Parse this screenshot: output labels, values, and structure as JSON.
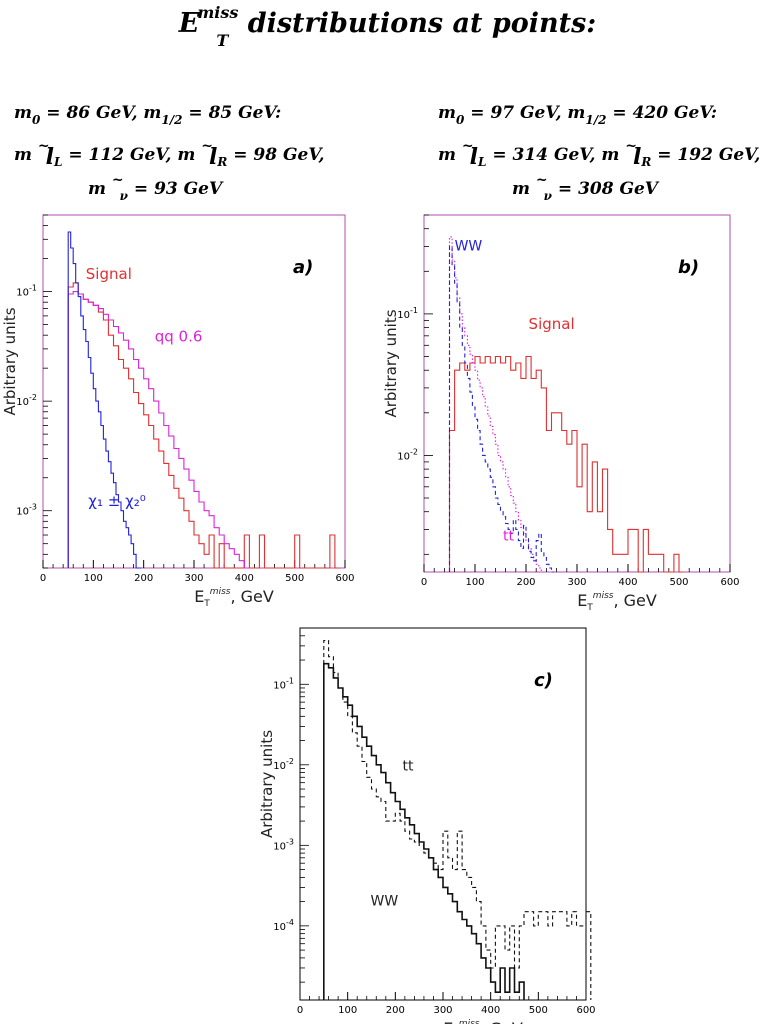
{
  "title": {
    "e": "E",
    "sup": "miss",
    "sub": "T",
    "rest": "distributions at points:"
  },
  "point_a": {
    "line1_a": "m",
    "line1_a_sub": "0",
    "line1_b": "= 86  GeV,   m",
    "line1_b_sub": "1/2",
    "line1_c": "= 85 GeV:",
    "line2_a": "m",
    "line2_a_sub": "L",
    "line2_b": "= 112 GeV,  m",
    "line2_b_sub": "R",
    "line2_c": "= 98 GeV,",
    "line3_a": "m",
    "line3_sub": "ν",
    "line3_b": "= 93 GeV"
  },
  "point_b": {
    "line1_a": "m",
    "line1_a_sub": "0",
    "line1_b": "= 97  GeV,   m",
    "line1_b_sub": "1/2",
    "line1_c": "= 420 GeV:",
    "line2_a": "m",
    "line2_a_sub": "L",
    "line2_b": "= 314 GeV,  m",
    "line2_b_sub": "R",
    "line2_c": "= 192 GeV,",
    "line3_a": "m",
    "line3_sub": "ν",
    "line3_b": "= 308 GeV"
  },
  "tilde": "~",
  "ell": "l",
  "chart_data": [
    {
      "type": "line",
      "panel_label": "a)",
      "ylabel": "Arbitrary units",
      "xlabel_main": "E",
      "xlabel_sub": "T",
      "xlabel_sup": "miss",
      "xlabel_unit": ", GeV",
      "scale_y": "log",
      "xlim": [
        0,
        600
      ],
      "ylim": [
        0.0003,
        0.5
      ],
      "x_ticks": [
        0,
        100,
        200,
        300,
        400,
        500,
        600
      ],
      "y_ticks": [
        {
          "value": 0.1,
          "base": "10",
          "exp": "-1"
        },
        {
          "value": 0.01,
          "base": "10",
          "exp": "-2"
        },
        {
          "value": 0.001,
          "base": "10",
          "exp": "-3"
        }
      ],
      "annotations": [
        {
          "text": "Signal",
          "color": "#e03030",
          "x": 85,
          "y": 0.13
        },
        {
          "text": "qq 0.6",
          "color": "#dd22dd",
          "x": 222,
          "y": 0.035
        },
        {
          "text": "χ₁ ± χ₂⁰",
          "color": "#2222dd",
          "x": 90,
          "y": 0.0011
        }
      ],
      "series": [
        {
          "color": "#e03030",
          "style": "solid",
          "x_start": 50,
          "bin_width": 10,
          "values": [
            0.11,
            0.12,
            0.095,
            0.085,
            0.08,
            0.075,
            0.065,
            0.055,
            0.04,
            0.032,
            0.024,
            0.02,
            0.016,
            0.012,
            0.0095,
            0.0075,
            0.006,
            0.0045,
            0.0035,
            0.0027,
            0.0021,
            0.0016,
            0.0013,
            0.001,
            0.0008,
            0.0006,
            0.0005,
            0.0004,
            0.0006,
            0.0003,
            0.0005,
            0.0003,
            0.0003,
            0.0003,
            0.0003,
            0.0006,
            0.0003,
            0.0003,
            0.0006,
            0.0003,
            0.0003,
            0.0003,
            0.0003,
            0.0003,
            0.0003,
            0.0006,
            0.0003,
            0.0003,
            0.0003,
            0.0003,
            0.0003,
            0.0003,
            0.0006,
            0.0003
          ]
        },
        {
          "color": "#dd22dd",
          "style": "solid",
          "x_start": 50,
          "bin_width": 10,
          "values": [
            0.095,
            0.1,
            0.095,
            0.085,
            0.08,
            0.075,
            0.07,
            0.062,
            0.055,
            0.048,
            0.042,
            0.036,
            0.03,
            0.024,
            0.02,
            0.016,
            0.013,
            0.01,
            0.0078,
            0.006,
            0.0048,
            0.0037,
            0.003,
            0.0024,
            0.0019,
            0.0015,
            0.0012,
            0.001,
            0.0009,
            0.0007,
            0.0006,
            0.0005,
            0.00045,
            0.0004,
            0.00035,
            0.0003
          ]
        },
        {
          "color": "#2222dd",
          "style": "solid",
          "x_start": 50,
          "bin_width": 5,
          "values": [
            0.35,
            0.25,
            0.18,
            0.12,
            0.09,
            0.06,
            0.045,
            0.035,
            0.025,
            0.018,
            0.013,
            0.01,
            0.008,
            0.006,
            0.0045,
            0.0035,
            0.0028,
            0.0022,
            0.0018,
            0.0014,
            0.0012,
            0.001,
            0.0008,
            0.0007,
            0.0006,
            0.0005,
            0.0004,
            0.0003,
            0.0003
          ]
        }
      ]
    },
    {
      "type": "line",
      "panel_label": "b)",
      "ylabel": "Arbitrary units",
      "xlabel_main": "E",
      "xlabel_sub": "T",
      "xlabel_sup": "miss",
      "xlabel_unit": ", GeV",
      "scale_y": "log",
      "xlim": [
        0,
        600
      ],
      "ylim": [
        0.0015,
        0.5
      ],
      "x_ticks": [
        0,
        100,
        200,
        300,
        400,
        500,
        600
      ],
      "y_ticks": [
        {
          "value": 0.1,
          "base": "10",
          "exp": "-1"
        },
        {
          "value": 0.01,
          "base": "10",
          "exp": "-2"
        }
      ],
      "annotations": [
        {
          "text": "WW",
          "color": "#2222dd",
          "x": 60,
          "y": 0.28
        },
        {
          "text": "Signal",
          "color": "#e03030",
          "x": 205,
          "y": 0.078
        },
        {
          "text": "tt",
          "color": "#dd22dd",
          "x": 155,
          "y": 0.0025
        }
      ],
      "series": [
        {
          "color": "#e03030",
          "style": "solid",
          "x_start": 50,
          "bin_width": 10,
          "values": [
            0.015,
            0.04,
            0.045,
            0.04,
            0.045,
            0.05,
            0.045,
            0.05,
            0.045,
            0.05,
            0.045,
            0.05,
            0.04,
            0.045,
            0.035,
            0.05,
            0.035,
            0.04,
            0.03,
            0.015,
            0.02,
            0.02,
            0.015,
            0.012,
            0.015,
            0.006,
            0.012,
            0.004,
            0.009,
            0.004,
            0.008,
            0.003,
            0.002,
            0.002,
            0.002,
            0.003,
            0.003,
            0.0015,
            0.003,
            0.002,
            0.002,
            0.002,
            0.0015,
            0.0015,
            0.002,
            0.0015
          ]
        },
        {
          "color": "#dd22dd",
          "style": "dotted",
          "x_start": 50,
          "bin_width": 5,
          "values": [
            0.35,
            0.24,
            0.18,
            0.13,
            0.1,
            0.08,
            0.07,
            0.06,
            0.052,
            0.045,
            0.04,
            0.034,
            0.03,
            0.026,
            0.022,
            0.019,
            0.016,
            0.014,
            0.012,
            0.01,
            0.009,
            0.008,
            0.007,
            0.006,
            0.0052,
            0.0046,
            0.004,
            0.0035,
            0.0031,
            0.0028,
            0.0025,
            0.0022,
            0.002,
            0.0018,
            0.0017,
            0.0016,
            0.0015
          ]
        },
        {
          "color": "#2222dd",
          "style": "dashed",
          "x_start": 50,
          "bin_width": 5,
          "values": [
            0.3,
            0.22,
            0.16,
            0.12,
            0.08,
            0.06,
            0.045,
            0.035,
            0.028,
            0.022,
            0.018,
            0.015,
            0.012,
            0.01,
            0.009,
            0.008,
            0.007,
            0.006,
            0.005,
            0.0045,
            0.004,
            0.0037,
            0.0033,
            0.003,
            0.0028,
            0.0035,
            0.003,
            0.0025,
            0.0022,
            0.0032,
            0.0026,
            0.0021,
            0.0019,
            0.0018,
            0.0025,
            0.0028,
            0.0021,
            0.0019,
            0.0017,
            0.0016,
            0.0015
          ]
        }
      ]
    },
    {
      "type": "line",
      "panel_label": "c)",
      "ylabel": "Arbitrary units",
      "xlabel_main": "E",
      "xlabel_sub": "T",
      "xlabel_sup": "miss",
      "xlabel_unit": ", GeV",
      "scale_y": "log",
      "xlim": [
        0,
        600
      ],
      "ylim": [
        1.2e-05,
        0.5
      ],
      "x_ticks": [
        0,
        100,
        200,
        300,
        400,
        500,
        600
      ],
      "y_ticks": [
        {
          "value": 0.1,
          "base": "10",
          "exp": "-1"
        },
        {
          "value": 0.01,
          "base": "10",
          "exp": "-2"
        },
        {
          "value": 0.001,
          "base": "10",
          "exp": "-3"
        },
        {
          "value": 0.0001,
          "base": "10",
          "exp": "-4"
        }
      ],
      "annotations": [
        {
          "text": "tt",
          "color": "#222222",
          "x": 215,
          "y": 0.0085
        },
        {
          "text": "WW",
          "color": "#222222",
          "x": 148,
          "y": 0.00018
        }
      ],
      "series": [
        {
          "color": "#111111",
          "style": "solid",
          "x_start": 50,
          "bin_width": 10,
          "values": [
            0.18,
            0.16,
            0.12,
            0.09,
            0.07,
            0.055,
            0.04,
            0.03,
            0.022,
            0.017,
            0.013,
            0.01,
            0.008,
            0.006,
            0.0045,
            0.0035,
            0.0028,
            0.0022,
            0.0018,
            0.0014,
            0.0011,
            0.0009,
            0.0007,
            0.0005,
            0.0004,
            0.0003,
            0.00025,
            0.0002,
            0.00015,
            0.00012,
            0.0001,
            8e-05,
            6e-05,
            4e-05,
            3e-05,
            2e-05,
            1.5e-05,
            3e-05,
            1.5e-05,
            3e-05,
            1.5e-05,
            2e-05
          ]
        },
        {
          "color": "#111111",
          "style": "dashed",
          "x_start": 50,
          "bin_width": 10,
          "values": [
            0.35,
            0.22,
            0.14,
            0.09,
            0.06,
            0.04,
            0.025,
            0.017,
            0.011,
            0.007,
            0.005,
            0.004,
            0.0035,
            0.002,
            0.002,
            0.0025,
            0.002,
            0.0015,
            0.0012,
            0.0011,
            0.001,
            0.0008,
            0.0007,
            0.0006,
            0.0005,
            0.0015,
            0.0007,
            0.0005,
            0.0015,
            0.0005,
            0.0004,
            0.0003,
            0.0002,
            0.0001,
            5e-05,
            3e-05,
            0.0001,
            0.0001,
            5e-05,
            0.0001,
            3e-05,
            0.0001,
            0.00015,
            0.00015,
            0.0001,
            0.00015,
            0.00015,
            0.0001,
            0.00015,
            0.00015,
            0.00015,
            0.0001,
            0.00015,
            0.0001,
            0.0001,
            0.00015
          ]
        }
      ]
    }
  ]
}
